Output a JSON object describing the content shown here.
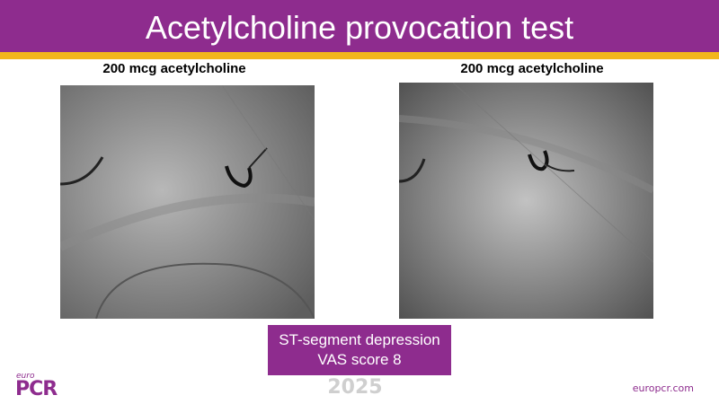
{
  "header": {
    "title": "Acetylcholine provocation test"
  },
  "panels": [
    {
      "label": "200 mcg acetylcholine"
    },
    {
      "label": "200 mcg acetylcholine"
    }
  ],
  "caption": {
    "lines": [
      "ST-segment depression",
      "VAS score 8"
    ]
  },
  "footer": {
    "logo_small": "euro",
    "logo": "PCR",
    "year": "2025",
    "url": "europcr.com"
  }
}
